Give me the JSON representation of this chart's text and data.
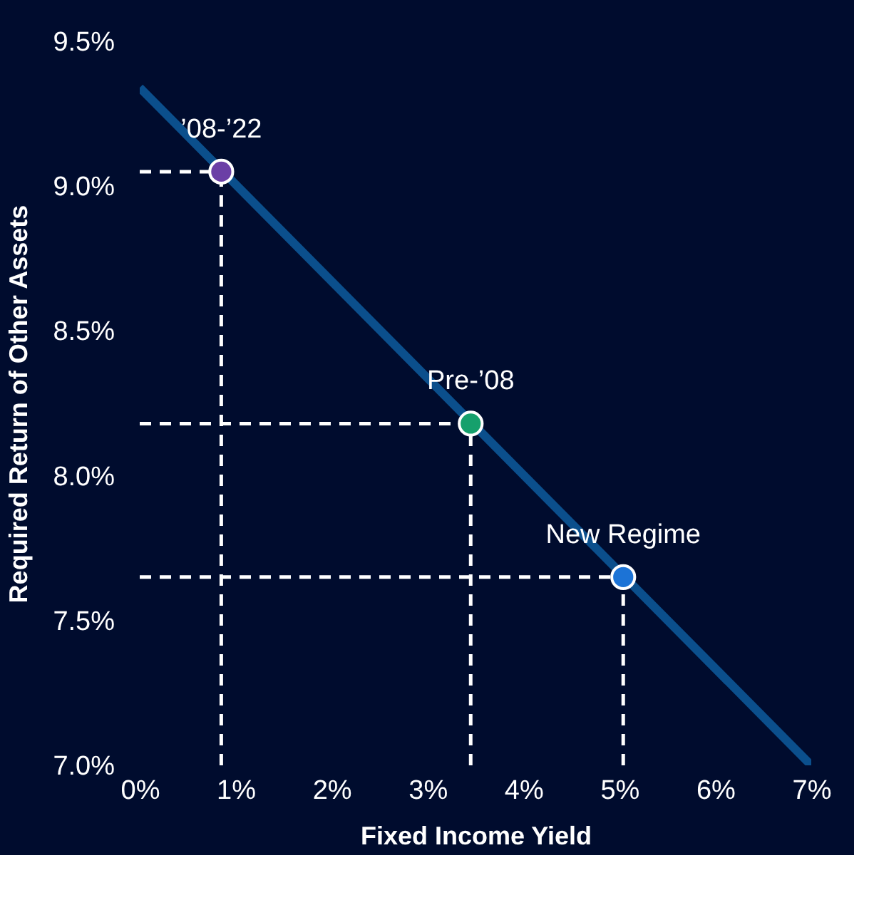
{
  "chart_data": {
    "type": "scatter",
    "xlabel": "Fixed Income Yield",
    "ylabel": "Required Return of Other Assets",
    "xlim": [
      0,
      7
    ],
    "ylim": [
      7.0,
      9.5
    ],
    "xticks": [
      {
        "value": 0,
        "label": "0%"
      },
      {
        "value": 1,
        "label": "1%"
      },
      {
        "value": 2,
        "label": "2%"
      },
      {
        "value": 3,
        "label": "3%"
      },
      {
        "value": 4,
        "label": "4%"
      },
      {
        "value": 5,
        "label": "5%"
      },
      {
        "value": 6,
        "label": "6%"
      },
      {
        "value": 7,
        "label": "7%"
      }
    ],
    "yticks": [
      {
        "value": 7.0,
        "label": "7.0%"
      },
      {
        "value": 7.5,
        "label": "7.5%"
      },
      {
        "value": 8.0,
        "label": "8.0%"
      },
      {
        "value": 8.5,
        "label": "8.5%"
      },
      {
        "value": 9.0,
        "label": "9.0%"
      },
      {
        "value": 9.5,
        "label": "9.5%"
      }
    ],
    "marker": "circle",
    "series": [
      {
        "type": "line",
        "marker": "none",
        "line_style": "dashed",
        "color": "#ffffff",
        "x": [
          0,
          0.85
        ],
        "values": [
          9.05,
          9.05
        ]
      },
      {
        "type": "line",
        "marker": "none",
        "line_style": "dashed",
        "color": "#ffffff",
        "x": [
          0.85,
          0.85
        ],
        "values": [
          7.0,
          9.05
        ]
      },
      {
        "type": "line",
        "marker": "none",
        "line_style": "dashed",
        "color": "#ffffff",
        "x": [
          0,
          3.45
        ],
        "values": [
          8.18,
          8.18
        ]
      },
      {
        "type": "line",
        "marker": "none",
        "line_style": "dashed",
        "color": "#ffffff",
        "x": [
          3.45,
          3.45
        ],
        "values": [
          7.0,
          8.18
        ]
      },
      {
        "type": "line",
        "marker": "none",
        "line_style": "dashed",
        "color": "#ffffff",
        "x": [
          0,
          5.04
        ],
        "values": [
          7.65,
          7.65
        ]
      },
      {
        "type": "line",
        "marker": "none",
        "line_style": "dashed",
        "color": "#ffffff",
        "x": [
          5.04,
          5.04
        ],
        "values": [
          7.0,
          7.65
        ]
      },
      {
        "type": "line",
        "marker": "none",
        "line_style": "solid",
        "color": "#0b4f8c",
        "x": [
          0,
          7
        ],
        "values": [
          9.34,
          7.0
        ]
      },
      {
        "name": "’08-’22",
        "color": "#6b3fa6",
        "x": [
          0.85
        ],
        "values": [
          9.05
        ]
      },
      {
        "name": "Pre-’08",
        "color": "#16a06c",
        "x": [
          3.45
        ],
        "values": [
          8.18
        ]
      },
      {
        "name": "New Regime",
        "color": "#1c73d6",
        "x": [
          5.04
        ],
        "values": [
          7.65
        ]
      }
    ]
  }
}
